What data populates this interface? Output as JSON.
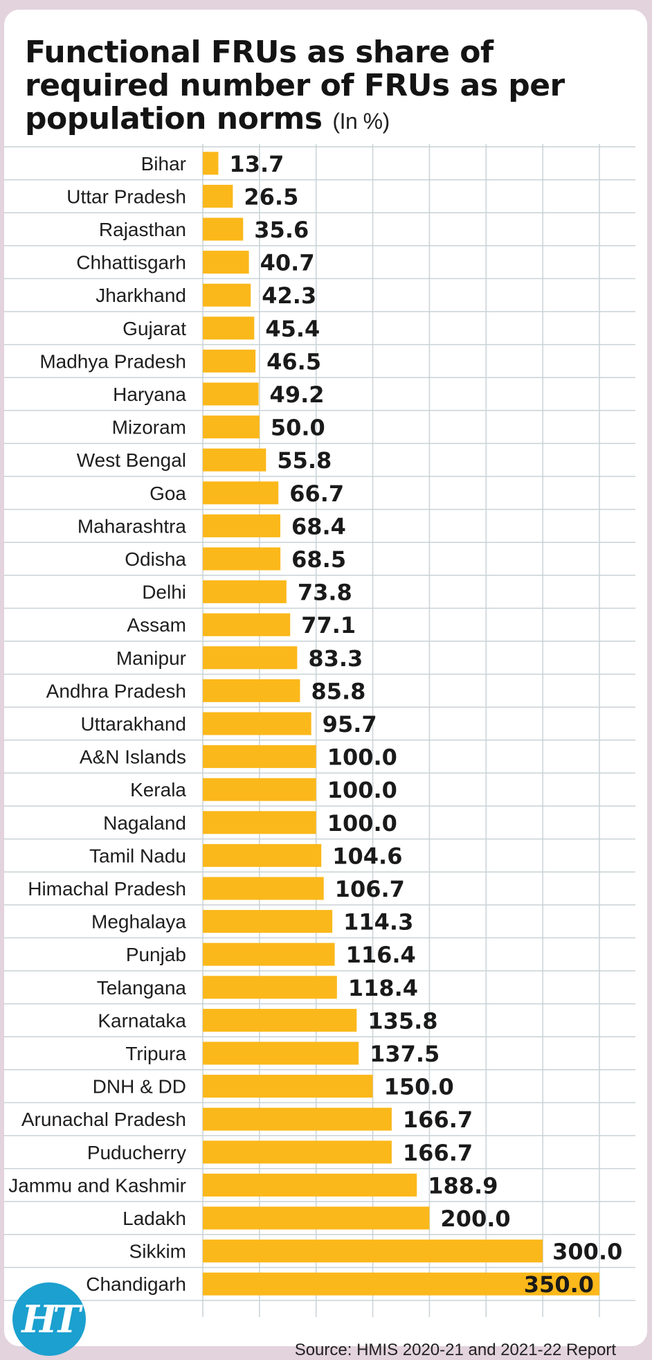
{
  "title": "Functional FRUs as share of required number of FRUs as per population norms",
  "title_unit": "(In %)",
  "source": "Source: HMIS 2020-21 and 2021-22 Report",
  "logo_text": "HT",
  "colors": {
    "bar": "#fbb81b",
    "grid": "#c9d2d6",
    "background": "#e3d3dd"
  },
  "chart_data": {
    "type": "bar",
    "orientation": "horizontal",
    "title": "Functional FRUs as share of required number of FRUs as per population norms",
    "unit": "(In %)",
    "xlim": [
      0,
      350
    ],
    "grid": true,
    "categories": [
      "Bihar",
      "Uttar Pradesh",
      "Rajasthan",
      "Chhattisgarh",
      "Jharkhand",
      "Gujarat",
      "Madhya Pradesh",
      "Haryana",
      "Mizoram",
      "West Bengal",
      "Goa",
      "Maharashtra",
      "Odisha",
      "Delhi",
      "Assam",
      "Manipur",
      "Andhra Pradesh",
      "Uttarakhand",
      "A&N Islands",
      "Kerala",
      "Nagaland",
      "Tamil Nadu",
      "Himachal Pradesh",
      "Meghalaya",
      "Punjab",
      "Telangana",
      "Karnataka",
      "Tripura",
      "DNH & DD",
      "Arunachal Pradesh",
      "Puducherry",
      "Jammu and Kashmir",
      "Ladakh",
      "Sikkim",
      "Chandigarh"
    ],
    "values": [
      13.7,
      26.5,
      35.6,
      40.7,
      42.3,
      45.4,
      46.5,
      49.2,
      50.0,
      55.8,
      66.7,
      68.4,
      68.5,
      73.8,
      77.1,
      83.3,
      85.8,
      95.7,
      100.0,
      100.0,
      100.0,
      104.6,
      106.7,
      114.3,
      116.4,
      118.4,
      135.8,
      137.5,
      150.0,
      166.7,
      166.7,
      188.9,
      200.0,
      300.0,
      350.0
    ],
    "labels": [
      "13.7",
      "26.5",
      "35.6",
      "40.7",
      "42.3",
      "45.4",
      "46.5",
      "49.2",
      "50.0",
      "55.8",
      "66.7",
      "68.4",
      "68.5",
      "73.8",
      "77.1",
      "83.3",
      "85.8",
      "95.7",
      "100.0",
      "100.0",
      "100.0",
      "104.6",
      "106.7",
      "114.3",
      "116.4",
      "118.4",
      "135.8",
      "137.5",
      "150.0",
      "166.7",
      "166.7",
      "188.9",
      "200.0",
      "300.0",
      "350.0"
    ]
  }
}
